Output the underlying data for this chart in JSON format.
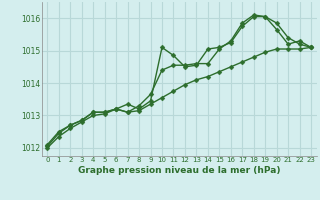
{
  "xlabel": "Graphe pression niveau de la mer (hPa)",
  "bg_color": "#d4eeee",
  "grid_color": "#b8d8d8",
  "line_color": "#2d6e2d",
  "marker": "D",
  "markersize": 2.5,
  "linewidth": 1.0,
  "xlim": [
    -0.5,
    23.5
  ],
  "ylim": [
    1011.75,
    1016.5
  ],
  "yticks": [
    1012,
    1013,
    1014,
    1015,
    1016
  ],
  "xticks": [
    0,
    1,
    2,
    3,
    4,
    5,
    6,
    7,
    8,
    9,
    10,
    11,
    12,
    13,
    14,
    15,
    16,
    17,
    18,
    19,
    20,
    21,
    22,
    23
  ],
  "series": [
    [
      1012.05,
      1012.45,
      1012.7,
      1012.85,
      1013.1,
      1013.1,
      1013.2,
      1013.35,
      1013.2,
      1013.45,
      1015.1,
      1014.85,
      1014.5,
      1014.55,
      1015.05,
      1015.1,
      1015.25,
      1015.75,
      1016.05,
      1016.05,
      1015.65,
      1015.2,
      1015.3,
      1015.1
    ],
    [
      1012.1,
      1012.5,
      1012.7,
      1012.85,
      1013.1,
      1013.1,
      1013.2,
      1013.1,
      1013.3,
      1013.65,
      1014.4,
      1014.55,
      1014.55,
      1014.6,
      1014.6,
      1015.05,
      1015.3,
      1015.85,
      1016.1,
      1016.05,
      1015.85,
      1015.4,
      1015.2,
      1015.1
    ],
    [
      1012.0,
      1012.35,
      1012.6,
      1012.8,
      1013.0,
      1013.05,
      1013.2,
      1013.1,
      1013.15,
      1013.35,
      1013.55,
      1013.75,
      1013.95,
      1014.1,
      1014.2,
      1014.35,
      1014.5,
      1014.65,
      1014.8,
      1014.95,
      1015.05,
      1015.05,
      1015.05,
      1015.1
    ]
  ]
}
